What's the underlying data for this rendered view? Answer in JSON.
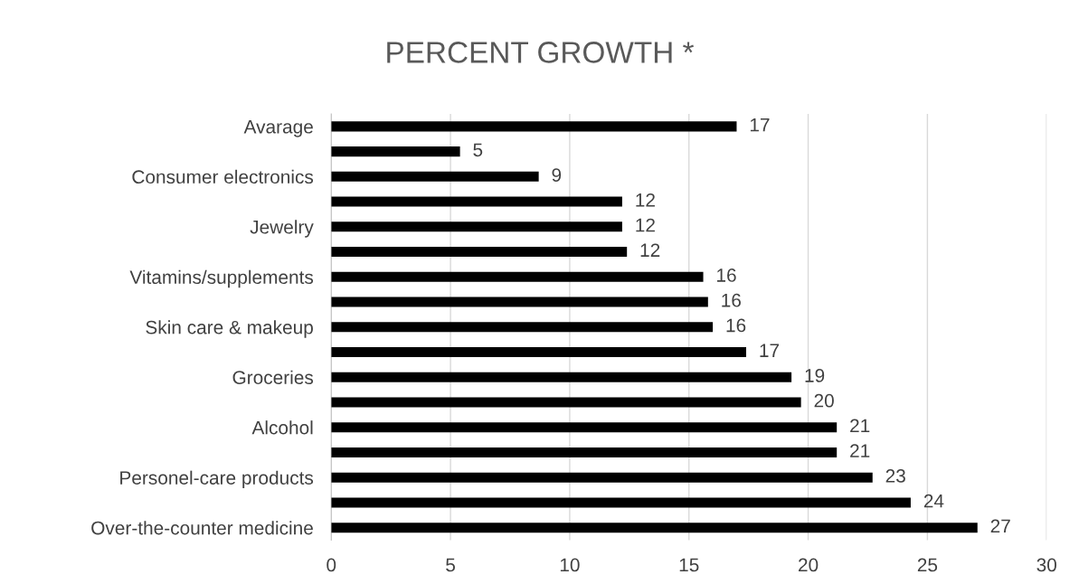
{
  "chart_data": {
    "type": "bar",
    "orientation": "horizontal",
    "title": "PERCENT GROWTH *",
    "categories": [
      "Avarage",
      null,
      "Consumer electronics",
      null,
      "Jewelry",
      null,
      "Vitamins/supplements",
      null,
      "Skin care & makeup",
      null,
      "Groceries",
      null,
      "Alcohol",
      null,
      "Personel-care products",
      null,
      "Over-the-counter medicine"
    ],
    "values": [
      17.0,
      5.4,
      8.7,
      12.2,
      12.2,
      12.4,
      15.6,
      15.8,
      16.0,
      17.4,
      19.3,
      19.7,
      21.2,
      21.2,
      22.7,
      24.3,
      27.1
    ],
    "value_labels": [
      "17",
      "5",
      "9",
      "12",
      "12",
      "12",
      "16",
      "16",
      "16",
      "17",
      "19",
      "20",
      "21",
      "21",
      "23",
      "24",
      "27"
    ],
    "color": "#000000",
    "xlim": [
      0,
      30
    ],
    "xticks": [
      0,
      5,
      10,
      15,
      20,
      25,
      30
    ],
    "grid": "x"
  }
}
